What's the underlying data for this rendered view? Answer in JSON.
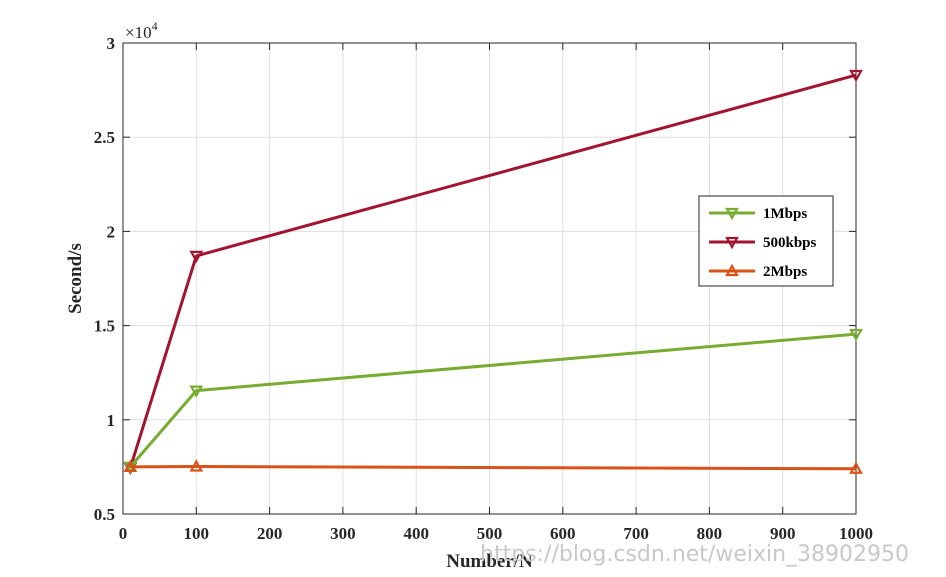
{
  "chart_data": {
    "type": "line",
    "xlabel": "Number/N",
    "ylabel": "Second/s",
    "xlim": [
      0,
      1000
    ],
    "ylim": [
      5000,
      30000
    ],
    "xticks": [
      0,
      100,
      200,
      300,
      400,
      500,
      600,
      700,
      800,
      900,
      1000
    ],
    "xtick_labels": [
      "0",
      "100",
      "200",
      "300",
      "400",
      "500",
      "600",
      "700",
      "800",
      "900",
      "1000"
    ],
    "yticks": [
      5000,
      10000,
      15000,
      20000,
      25000,
      30000
    ],
    "ytick_labels": [
      "0.5",
      "1",
      "1.5",
      "2",
      "2.5",
      "3"
    ],
    "y_exponent_label": "×10",
    "y_exponent_power": "4",
    "grid": true,
    "legend_position": "right",
    "x": [
      10,
      100,
      1000
    ],
    "series": [
      {
        "name": "1Mbps",
        "color": "#77ac30",
        "marker": "triangle-down",
        "values": [
          7500,
          11550,
          14550
        ]
      },
      {
        "name": "500kbps",
        "color": "#a2142f",
        "marker": "triangle-down",
        "values": [
          7450,
          18700,
          28300
        ]
      },
      {
        "name": "2Mbps",
        "color": "#d95319",
        "marker": "triangle-up",
        "values": [
          7500,
          7520,
          7400
        ]
      }
    ]
  },
  "watermark": "https://blog.csdn.net/weixin_38902950"
}
